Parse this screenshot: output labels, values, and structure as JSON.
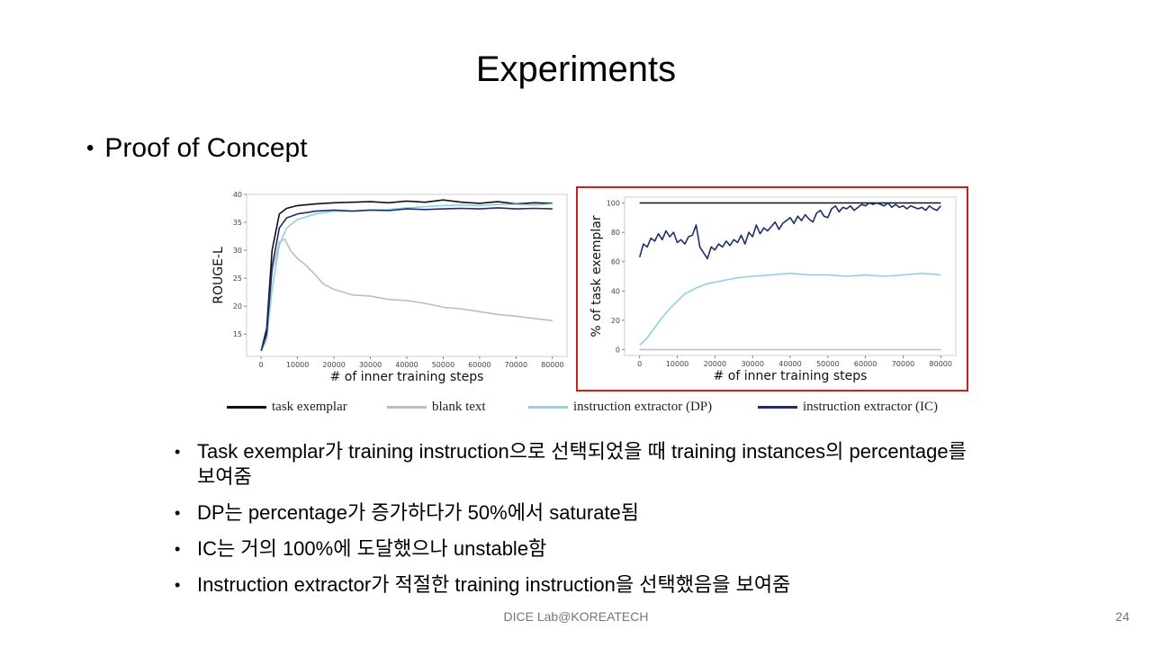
{
  "slide": {
    "title": "Experiments",
    "bullet_main": "Proof of Concept",
    "footer": "DICE Lab@KOREATECH",
    "page_number": "24"
  },
  "bullets": [
    "Task exemplar가 training instruction으로 선택되었을 때 training instances의 percentage를 보여줌",
    "DP는 percentage가 증가하다가 50%에서 saturate됨",
    "IC는 거의 100%에 도달했으나 unstable함",
    "Instruction extractor가 적절한 training instruction을 선택했음을 보여줌"
  ],
  "legend": [
    {
      "name": "task exemplar",
      "color": "#111111"
    },
    {
      "name": "blank text",
      "color": "#bdbdbd"
    },
    {
      "name": "instruction extractor (DP)",
      "color": "#8fd0e8"
    },
    {
      "name": "instruction extractor (IC)",
      "color": "#1f2d6e"
    }
  ],
  "chart_data": [
    {
      "type": "line",
      "xlabel": "# of inner training steps",
      "ylabel": "ROUGE-L",
      "xlim": [
        -4000,
        84000
      ],
      "ylim": [
        11,
        40
      ],
      "xticks": [
        0,
        10000,
        20000,
        30000,
        40000,
        50000,
        60000,
        70000,
        80000
      ],
      "yticks": [
        15,
        20,
        25,
        30,
        35,
        40
      ],
      "grid": false,
      "series": [
        {
          "name": "task exemplar",
          "color": "#111111",
          "x": [
            0,
            1500,
            3000,
            5000,
            7000,
            10000,
            15000,
            20000,
            25000,
            30000,
            35000,
            40000,
            45000,
            50000,
            55000,
            60000,
            65000,
            70000,
            75000,
            80000
          ],
          "y": [
            12,
            16,
            30,
            36.5,
            37.5,
            38,
            38.3,
            38.5,
            38.6,
            38.7,
            38.5,
            38.8,
            38.6,
            39,
            38.6,
            38.4,
            38.7,
            38.3,
            38.5,
            38.4
          ]
        },
        {
          "name": "blank text",
          "color": "#bdbdbd",
          "x": [
            0,
            1500,
            3000,
            5000,
            6500,
            8000,
            10000,
            12000,
            15000,
            17000,
            20000,
            25000,
            30000,
            35000,
            40000,
            45000,
            50000,
            55000,
            60000,
            65000,
            70000,
            75000,
            80000
          ],
          "y": [
            12,
            15,
            26,
            31.5,
            32,
            30,
            28.5,
            27.5,
            25.5,
            24,
            23,
            22,
            21.8,
            21.2,
            21,
            20.5,
            19.8,
            19.5,
            19,
            18.5,
            18.2,
            17.8,
            17.4
          ]
        },
        {
          "name": "instruction extractor (DP)",
          "color": "#8fd0e8",
          "x": [
            0,
            1500,
            3000,
            5000,
            7000,
            10000,
            15000,
            20000,
            25000,
            30000,
            35000,
            40000,
            45000,
            50000,
            55000,
            60000,
            65000,
            70000,
            75000,
            80000
          ],
          "y": [
            12,
            14,
            23,
            31,
            34,
            35.5,
            36.5,
            37,
            37,
            37.2,
            37.3,
            37.6,
            37.8,
            38,
            38.1,
            38,
            38.2,
            38.2,
            38.1,
            38.3
          ]
        },
        {
          "name": "instruction extractor (IC)",
          "color": "#1f2d6e",
          "x": [
            0,
            1500,
            3000,
            5000,
            7000,
            10000,
            15000,
            20000,
            25000,
            30000,
            35000,
            40000,
            45000,
            50000,
            55000,
            60000,
            65000,
            70000,
            75000,
            80000
          ],
          "y": [
            12,
            15,
            27,
            34,
            35.8,
            36.5,
            37,
            37.2,
            37,
            37.2,
            37.1,
            37.4,
            37.3,
            37.4,
            37.5,
            37.4,
            37.6,
            37.4,
            37.5,
            37.4
          ]
        }
      ]
    },
    {
      "type": "line",
      "xlabel": "# of inner training steps",
      "ylabel": "% of task exemplar",
      "xlim": [
        -4000,
        84000
      ],
      "ylim": [
        -4,
        104
      ],
      "xticks": [
        0,
        10000,
        20000,
        30000,
        40000,
        50000,
        60000,
        70000,
        80000
      ],
      "yticks": [
        0,
        20,
        40,
        60,
        80,
        100
      ],
      "grid": false,
      "series": [
        {
          "name": "task exemplar",
          "color": "#111111",
          "x": [
            0,
            80000
          ],
          "y": [
            100,
            100
          ]
        },
        {
          "name": "blank text",
          "color": "#bdbdbd",
          "x": [
            0,
            80000
          ],
          "y": [
            0,
            0
          ]
        },
        {
          "name": "instruction extractor (DP)",
          "color": "#8fd0e8",
          "x": [
            0,
            2000,
            4000,
            6000,
            8000,
            10000,
            12000,
            15000,
            18000,
            22000,
            26000,
            30000,
            35000,
            40000,
            45000,
            50000,
            55000,
            60000,
            65000,
            70000,
            75000,
            80000
          ],
          "y": [
            3,
            8,
            15,
            22,
            28,
            33,
            38,
            42,
            45,
            47,
            49,
            50,
            51,
            52,
            51,
            51,
            50,
            51,
            50,
            51,
            52,
            51
          ]
        },
        {
          "name": "instruction extractor (IC)",
          "color": "#1f2d6e",
          "x": [
            0,
            1000,
            2000,
            3000,
            4000,
            5000,
            6000,
            7000,
            8000,
            9000,
            10000,
            11000,
            12000,
            13000,
            14000,
            15000,
            16000,
            17000,
            18000,
            19000,
            20000,
            21000,
            22000,
            23000,
            24000,
            25000,
            26000,
            27000,
            28000,
            29000,
            30000,
            31000,
            32000,
            33000,
            34000,
            35000,
            36000,
            37000,
            38000,
            39000,
            40000,
            41000,
            42000,
            43000,
            44000,
            45000,
            46000,
            47000,
            48000,
            49000,
            50000,
            51000,
            52000,
            53000,
            54000,
            55000,
            56000,
            57000,
            58000,
            59000,
            60000,
            61000,
            62000,
            63000,
            64000,
            65000,
            66000,
            67000,
            68000,
            69000,
            70000,
            71000,
            72000,
            73000,
            74000,
            75000,
            76000,
            77000,
            78000,
            79000,
            80000
          ],
          "y": [
            63,
            72,
            70,
            76,
            74,
            79,
            75,
            81,
            77,
            80,
            73,
            75,
            72,
            77,
            78,
            85,
            70,
            66,
            62,
            70,
            68,
            72,
            70,
            74,
            71,
            75,
            73,
            78,
            72,
            80,
            77,
            85,
            79,
            83,
            81,
            84,
            87,
            82,
            86,
            88,
            90,
            86,
            91,
            88,
            92,
            89,
            87,
            93,
            95,
            91,
            90,
            96,
            98,
            94,
            97,
            96,
            98,
            95,
            97,
            99,
            98,
            100,
            99,
            100,
            99,
            98,
            100,
            97,
            99,
            97,
            98,
            96,
            98,
            97,
            96,
            97,
            95,
            98,
            96,
            95,
            98
          ]
        }
      ]
    }
  ]
}
